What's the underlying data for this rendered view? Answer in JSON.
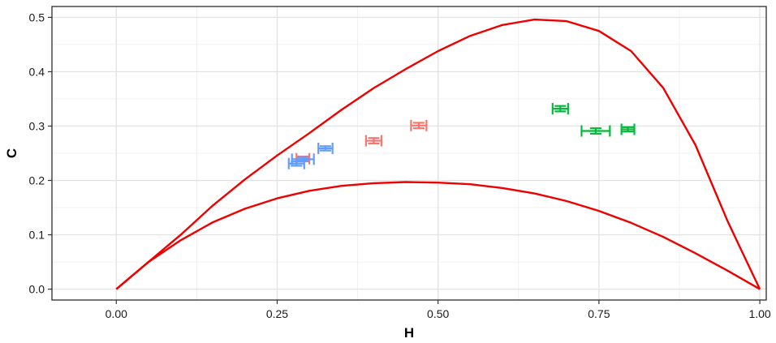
{
  "chart_data": {
    "type": "scatter",
    "title": "",
    "xlabel": "H",
    "ylabel": "C",
    "xlim": [
      -0.1,
      1.01
    ],
    "ylim": [
      -0.02,
      0.52
    ],
    "x_ticks": [
      0.0,
      0.25,
      0.5,
      0.75,
      1.0
    ],
    "x_tick_labels": [
      "0.00",
      "0.25",
      "0.50",
      "0.75",
      "1.00"
    ],
    "y_ticks": [
      0.0,
      0.1,
      0.2,
      0.3,
      0.4,
      0.5
    ],
    "y_tick_labels": [
      "0.0",
      "0.1",
      "0.2",
      "0.3",
      "0.4",
      "0.5"
    ],
    "grid": true,
    "legend": "none",
    "bounds": {
      "color": "#ee0000",
      "upper": {
        "x": [
          0.0,
          0.05,
          0.1,
          0.15,
          0.2,
          0.25,
          0.3,
          0.35,
          0.4,
          0.45,
          0.5,
          0.55,
          0.6,
          0.65,
          0.7,
          0.75,
          0.8,
          0.85,
          0.9,
          0.95,
          0.98,
          1.0
        ],
        "y": [
          0.0,
          0.05,
          0.1,
          0.154,
          0.202,
          0.246,
          0.287,
          0.33,
          0.37,
          0.405,
          0.438,
          0.466,
          0.486,
          0.496,
          0.493,
          0.475,
          0.438,
          0.37,
          0.265,
          0.125,
          0.05,
          0.0
        ]
      },
      "lower": {
        "x": [
          0.0,
          0.05,
          0.1,
          0.15,
          0.2,
          0.25,
          0.3,
          0.35,
          0.4,
          0.45,
          0.5,
          0.55,
          0.6,
          0.65,
          0.7,
          0.75,
          0.8,
          0.85,
          0.9,
          0.95,
          1.0
        ],
        "y": [
          0.0,
          0.05,
          0.09,
          0.123,
          0.148,
          0.167,
          0.181,
          0.19,
          0.195,
          0.197,
          0.196,
          0.193,
          0.186,
          0.176,
          0.162,
          0.144,
          0.122,
          0.096,
          0.066,
          0.034,
          0.0
        ]
      }
    },
    "series": [
      {
        "color": "#f8766d",
        "points": [
          {
            "x": 0.29,
            "y": 0.24,
            "xerr": 0.01,
            "yerr": 0.004
          },
          {
            "x": 0.4,
            "y": 0.273,
            "xerr": 0.012,
            "yerr": 0.005
          },
          {
            "x": 0.47,
            "y": 0.301,
            "xerr": 0.012,
            "yerr": 0.005
          }
        ]
      },
      {
        "color": "#00ba38",
        "points": [
          {
            "x": 0.69,
            "y": 0.332,
            "xerr": 0.012,
            "yerr": 0.005
          },
          {
            "x": 0.745,
            "y": 0.291,
            "xerr": 0.022,
            "yerr": 0.005
          },
          {
            "x": 0.795,
            "y": 0.294,
            "xerr": 0.01,
            "yerr": 0.004
          }
        ]
      },
      {
        "color": "#619cff",
        "points": [
          {
            "x": 0.28,
            "y": 0.231,
            "xerr": 0.012,
            "yerr": 0.004
          },
          {
            "x": 0.29,
            "y": 0.239,
            "xerr": 0.017,
            "yerr": 0.004
          },
          {
            "x": 0.325,
            "y": 0.259,
            "xerr": 0.011,
            "yerr": 0.004
          }
        ]
      }
    ]
  }
}
